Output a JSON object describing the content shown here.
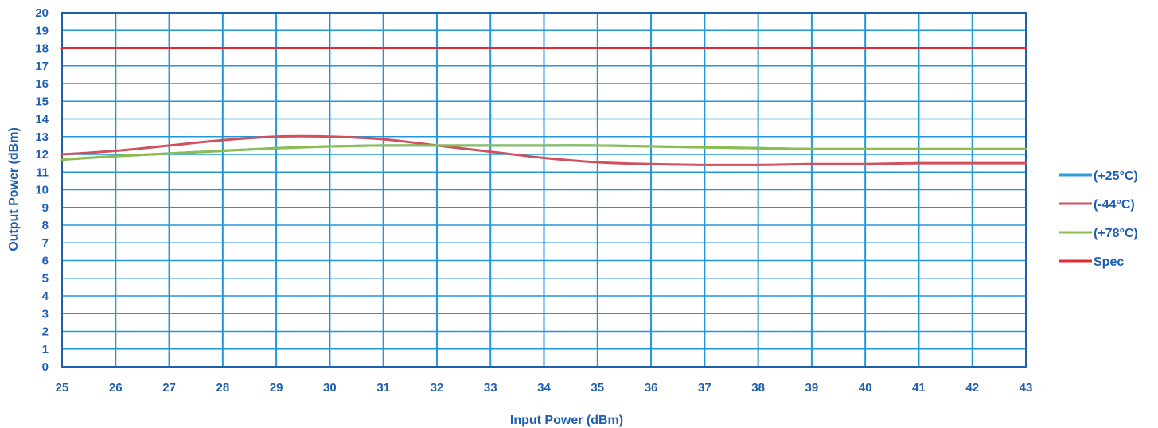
{
  "chart_data": {
    "type": "line",
    "xlabel": "Input Power (dBm)",
    "ylabel": "Output Power (dBm)",
    "xlim": [
      25,
      43
    ],
    "ylim": [
      0,
      20
    ],
    "x_ticks": [
      25,
      26,
      27,
      28,
      29,
      30,
      31,
      32,
      33,
      34,
      35,
      36,
      37,
      38,
      39,
      40,
      41,
      42,
      43
    ],
    "y_ticks": [
      0,
      1,
      2,
      3,
      4,
      5,
      6,
      7,
      8,
      9,
      10,
      11,
      12,
      13,
      14,
      15,
      16,
      17,
      18,
      19,
      20
    ],
    "grid": true,
    "legend_position": "right",
    "colors": {
      "grid": "#2196d8",
      "plot_border": "#1f5fb0",
      "text": "#1f5fb0"
    },
    "series": [
      {
        "name": "(+25°C)",
        "color": "#2f9fd8",
        "x": [
          25,
          26,
          27,
          28,
          29,
          30,
          31,
          32,
          33,
          34,
          35,
          36,
          37,
          38,
          39,
          40,
          41,
          42,
          43
        ],
        "y": [
          11.7,
          11.9,
          12.05,
          12.2,
          12.35,
          12.45,
          12.5,
          12.5,
          12.5,
          12.5,
          12.5,
          12.45,
          12.4,
          12.35,
          12.3,
          12.3,
          12.3,
          12.3,
          12.3
        ]
      },
      {
        "name": "(-44°C)",
        "color": "#d2505c",
        "x": [
          25,
          26,
          27,
          28,
          29,
          30,
          31,
          32,
          33,
          34,
          35,
          36,
          37,
          38,
          39,
          40,
          41,
          42,
          43
        ],
        "y": [
          12.0,
          12.2,
          12.5,
          12.8,
          13.0,
          13.0,
          12.85,
          12.5,
          12.15,
          11.8,
          11.55,
          11.45,
          11.4,
          11.4,
          11.45,
          11.45,
          11.5,
          11.5,
          11.5
        ]
      },
      {
        "name": "(+78°C)",
        "color": "#8dbd4a",
        "x": [
          25,
          26,
          27,
          28,
          29,
          30,
          31,
          32,
          33,
          34,
          35,
          36,
          37,
          38,
          39,
          40,
          41,
          42,
          43
        ],
        "y": [
          11.7,
          11.9,
          12.05,
          12.2,
          12.35,
          12.45,
          12.5,
          12.5,
          12.5,
          12.5,
          12.5,
          12.45,
          12.4,
          12.35,
          12.3,
          12.3,
          12.3,
          12.3,
          12.3
        ]
      },
      {
        "name": "Spec",
        "color": "#e02b35",
        "x": [
          25,
          43
        ],
        "y": [
          18,
          18
        ]
      }
    ]
  }
}
